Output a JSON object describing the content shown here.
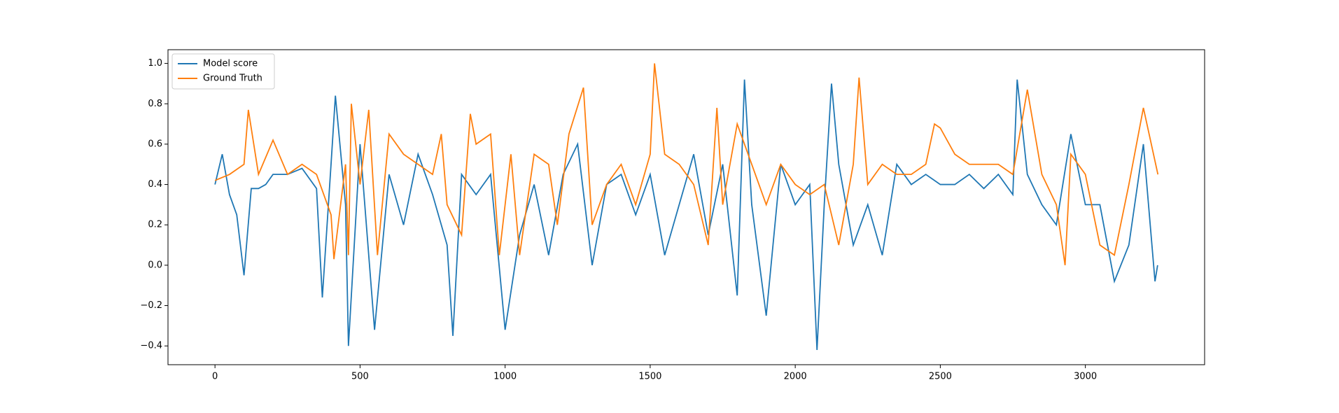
{
  "chart_data": {
    "type": "line",
    "xlim": [
      -162,
      3411
    ],
    "ylim": [
      -0.493,
      1.068
    ],
    "xticks": [
      0,
      500,
      1000,
      1500,
      2000,
      2500,
      3000
    ],
    "yticks": [
      {
        "value": -0.4,
        "label": "−0.4"
      },
      {
        "value": -0.2,
        "label": "−0.2"
      },
      {
        "value": 0,
        "label": "0.0"
      },
      0.2,
      0.4,
      0.6,
      0.8,
      {
        "value": 1,
        "label": "1.0"
      }
    ],
    "legend": "upper left",
    "series": [
      {
        "name": "Model score",
        "color": "#1f77b4",
        "x": [
          0,
          25,
          50,
          75,
          100,
          125,
          150,
          175,
          200,
          250,
          300,
          350,
          370,
          400,
          415,
          450,
          460,
          500,
          550,
          600,
          650,
          700,
          750,
          800,
          820,
          850,
          900,
          950,
          1000,
          1050,
          1100,
          1150,
          1200,
          1250,
          1300,
          1350,
          1400,
          1450,
          1500,
          1550,
          1600,
          1650,
          1700,
          1750,
          1800,
          1825,
          1850,
          1900,
          1950,
          2000,
          2050,
          2075,
          2100,
          2125,
          2150,
          2200,
          2250,
          2300,
          2350,
          2400,
          2450,
          2500,
          2550,
          2600,
          2650,
          2700,
          2750,
          2765,
          2800,
          2850,
          2900,
          2950,
          3000,
          3050,
          3100,
          3150,
          3200,
          3240,
          3249
        ],
        "values": [
          0.4,
          0.55,
          0.35,
          0.25,
          -0.05,
          0.38,
          0.38,
          0.4,
          0.45,
          0.45,
          0.48,
          0.38,
          -0.16,
          0.5,
          0.84,
          0.3,
          -0.4,
          0.6,
          -0.32,
          0.45,
          0.2,
          0.55,
          0.35,
          0.1,
          -0.35,
          0.45,
          0.35,
          0.45,
          -0.32,
          0.15,
          0.4,
          0.05,
          0.45,
          0.6,
          0.0,
          0.4,
          0.45,
          0.25,
          0.45,
          0.05,
          0.3,
          0.55,
          0.15,
          0.5,
          -0.15,
          0.92,
          0.3,
          -0.25,
          0.5,
          0.3,
          0.4,
          -0.42,
          0.3,
          0.9,
          0.5,
          0.1,
          0.3,
          0.05,
          0.5,
          0.4,
          0.45,
          0.4,
          0.4,
          0.45,
          0.38,
          0.45,
          0.35,
          0.92,
          0.45,
          0.3,
          0.2,
          0.65,
          0.3,
          0.3,
          -0.08,
          0.1,
          0.6,
          -0.08,
          0.0
        ]
      },
      {
        "name": "Ground Truth",
        "color": "#ff7f0e",
        "x": [
          0,
          50,
          100,
          115,
          150,
          200,
          250,
          300,
          350,
          400,
          410,
          450,
          460,
          470,
          500,
          530,
          560,
          600,
          650,
          700,
          750,
          780,
          800,
          850,
          880,
          900,
          950,
          980,
          1000,
          1020,
          1050,
          1100,
          1150,
          1180,
          1220,
          1270,
          1300,
          1350,
          1400,
          1450,
          1500,
          1515,
          1550,
          1600,
          1650,
          1700,
          1730,
          1750,
          1800,
          1850,
          1900,
          1950,
          2000,
          2050,
          2100,
          2150,
          2200,
          2220,
          2250,
          2300,
          2350,
          2400,
          2450,
          2480,
          2500,
          2550,
          2600,
          2650,
          2700,
          2750,
          2800,
          2850,
          2900,
          2930,
          2950,
          3000,
          3050,
          3100,
          3150,
          3200,
          3250
        ],
        "values": [
          0.42,
          0.45,
          0.5,
          0.77,
          0.45,
          0.62,
          0.45,
          0.5,
          0.45,
          0.25,
          0.03,
          0.5,
          0.05,
          0.8,
          0.4,
          0.77,
          0.05,
          0.65,
          0.55,
          0.5,
          0.45,
          0.65,
          0.3,
          0.15,
          0.75,
          0.6,
          0.65,
          0.05,
          0.3,
          0.55,
          0.05,
          0.55,
          0.5,
          0.2,
          0.65,
          0.88,
          0.2,
          0.4,
          0.5,
          0.3,
          0.55,
          1.0,
          0.55,
          0.5,
          0.4,
          0.1,
          0.78,
          0.3,
          0.7,
          0.5,
          0.3,
          0.5,
          0.4,
          0.35,
          0.4,
          0.1,
          0.5,
          0.93,
          0.4,
          0.5,
          0.45,
          0.45,
          0.5,
          0.7,
          0.68,
          0.55,
          0.5,
          0.5,
          0.5,
          0.45,
          0.87,
          0.45,
          0.3,
          0.0,
          0.55,
          0.45,
          0.1,
          0.05,
          0.4,
          0.78,
          0.45
        ]
      }
    ]
  }
}
